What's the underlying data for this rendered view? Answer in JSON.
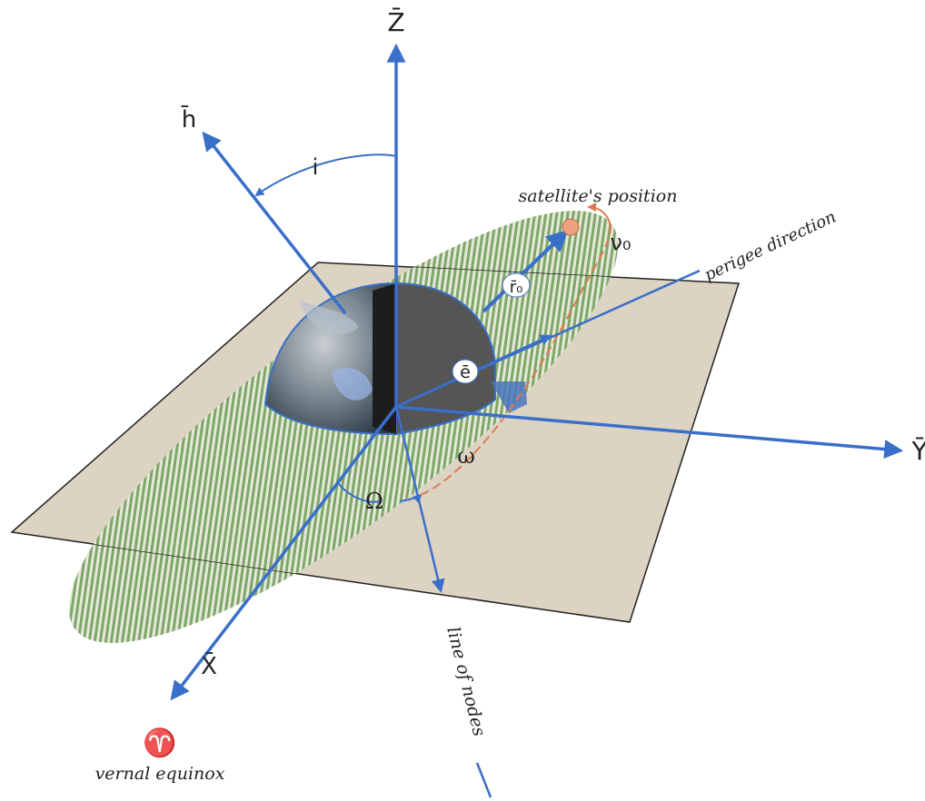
{
  "colors": {
    "vector": "#3a6fc9",
    "plane_fill": "#dcd3c3",
    "orbit_stripe_green": "#7fa66a",
    "orbit_stripe_light": "#e4e9d8",
    "arc_orange": "#e07a50",
    "satellite": "#e9a27d"
  },
  "axes": {
    "z_label": "Z̄",
    "y_label": "Ȳ",
    "x_label": "X̄",
    "h_label": "h̄"
  },
  "vectors": {
    "r_label": "r̄₀",
    "e_label": "ē"
  },
  "angles": {
    "inclination": "i",
    "raan": "Ω",
    "arg_perigee": "ω",
    "true_anomaly": "ν₀"
  },
  "annotations": {
    "satellite": "satellite's position",
    "perigee": "perigee direction",
    "nodes": "line of nodes",
    "aries_symbol": "♈",
    "vernal": "vernal equinox"
  }
}
